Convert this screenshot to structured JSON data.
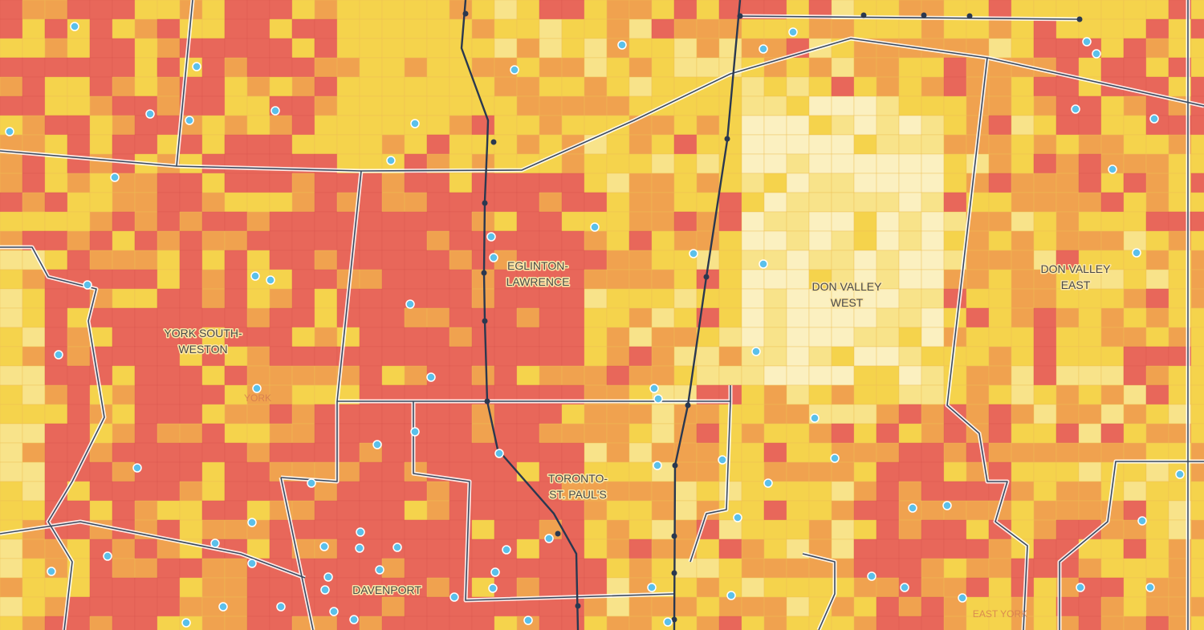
{
  "labels": [
    {
      "lines": [
        "EGLINTON-",
        "LAWRENCE"
      ]
    },
    {
      "lines": [
        "YORK SOUTH-",
        "WESTON"
      ]
    },
    {
      "lines": [
        "DON VALLEY",
        "WEST"
      ]
    },
    {
      "lines": [
        "DON VALLEY",
        "EAST"
      ]
    },
    {
      "lines": [
        "TORONTO-",
        "ST. PAUL'S"
      ]
    },
    {
      "lines": [
        "DAVENPORT"
      ]
    }
  ],
  "faint_labels": [
    "YORK",
    "EAST YORK"
  ]
}
